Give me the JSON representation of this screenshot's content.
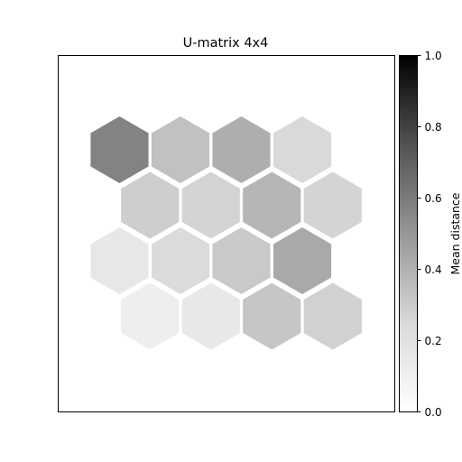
{
  "chart_data": {
    "type": "heatmap",
    "title": "U-matrix 4x4",
    "grid": false,
    "topology": "hexagonal",
    "rows": 4,
    "cols": 4,
    "values": [
      [
        0.57,
        0.34,
        0.41,
        0.25
      ],
      [
        0.29,
        0.27,
        0.38,
        0.27
      ],
      [
        0.16,
        0.24,
        0.31,
        0.43
      ],
      [
        0.11,
        0.15,
        0.32,
        0.28
      ]
    ],
    "colorbar": {
      "label": "Mean distance",
      "range": [
        0.0,
        1.0
      ],
      "ticks": [
        0.0,
        0.2,
        0.4,
        0.6,
        0.8,
        1.0
      ],
      "tick_labels": [
        "0.0",
        "0.2",
        "0.4",
        "0.6",
        "0.8",
        "1.0"
      ],
      "colormap": "Greys",
      "position": "right"
    },
    "axes_visible": false
  }
}
